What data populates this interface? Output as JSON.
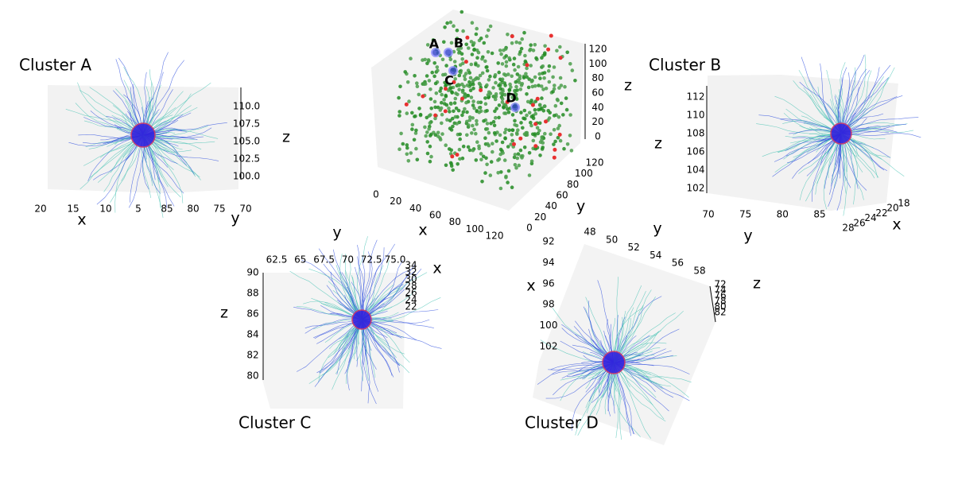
{
  "chart_data": [
    {
      "type": "scatter3d",
      "annotations": [
        "A",
        "B",
        "C",
        "D"
      ],
      "xlabel": "x",
      "ylabel": "y",
      "zlabel": "z",
      "xlim": [
        0,
        120
      ],
      "xticks": [
        0,
        20,
        40,
        60,
        80,
        100,
        120
      ],
      "ylim": [
        0,
        120
      ],
      "yticks": [
        0,
        20,
        40,
        60,
        80,
        100,
        120
      ],
      "zlim": [
        0,
        120
      ],
      "zticks": [
        0,
        20,
        40,
        60,
        80,
        100,
        120
      ]
    },
    {
      "type": "streamline3d",
      "title": "Cluster A",
      "xlabel": "x",
      "ylabel": "y",
      "zlabel": "z",
      "xlim": [
        20,
        5
      ],
      "xticks": [
        20,
        15,
        10,
        5
      ],
      "ylim": [
        85,
        70
      ],
      "yticks": [
        85,
        80,
        75,
        70
      ],
      "zlim": [
        100,
        110
      ],
      "zticks": [
        {
          "value": 100,
          "label": "100.0"
        },
        {
          "value": 102.5,
          "label": "102.5"
        },
        {
          "value": 105,
          "label": "105.0"
        },
        {
          "value": 107.5,
          "label": "107.5"
        },
        {
          "value": 110,
          "label": "110.0"
        }
      ]
    },
    {
      "type": "streamline3d",
      "title": "Cluster B",
      "xlabel": "x",
      "ylabel": "y",
      "zlabel": "z",
      "xlim": [
        28,
        18
      ],
      "xticks": [
        28,
        26,
        24,
        22,
        20,
        18
      ],
      "ylim": [
        70,
        85
      ],
      "yticks": [
        70,
        75,
        80,
        85
      ],
      "zlim": [
        102,
        112
      ],
      "zticks": [
        102,
        104,
        106,
        108,
        110,
        112
      ]
    },
    {
      "type": "streamline3d",
      "title": "Cluster C",
      "xlabel": "x",
      "ylabel": "y",
      "zlabel": "z",
      "xlim": [
        34,
        22
      ],
      "xticks": [
        34,
        32,
        30,
        28,
        26,
        24,
        22
      ],
      "ylim": [
        62.5,
        75
      ],
      "yticks": [
        62.5,
        65,
        67.5,
        70,
        72.5,
        {
          "value": 75,
          "label": "75.0"
        }
      ],
      "zlim": [
        80,
        90
      ],
      "zticks": [
        80,
        82,
        84,
        86,
        88,
        90
      ]
    },
    {
      "type": "streamline3d",
      "title": "Cluster D",
      "xlabel": "x",
      "ylabel": "y",
      "zlabel": "z",
      "xlim": [
        92,
        102
      ],
      "xticks": [
        92,
        94,
        96,
        98,
        100,
        102
      ],
      "ylim": [
        48,
        58
      ],
      "yticks": [
        48,
        50,
        52,
        54,
        56,
        58
      ],
      "zlim": [
        72,
        82
      ],
      "zticks": [
        72,
        74,
        76,
        78,
        80,
        82
      ]
    }
  ]
}
